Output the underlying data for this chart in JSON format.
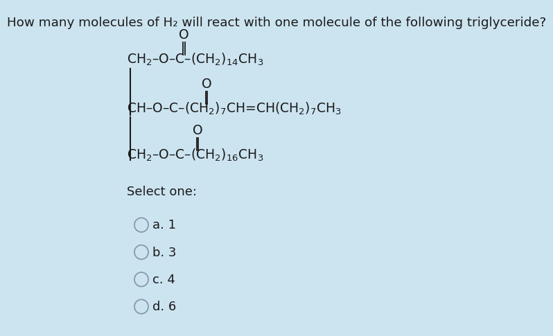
{
  "background_color": "#cce4f0",
  "title": "How many molecules of H₂ will react with one molecule of the following triglyceride?",
  "title_fontsize": 13.2,
  "font_color": "#1a1a1a",
  "formula_fontsize": 13.5,
  "option_fontsize": 13.0,
  "select_label": "Select one:",
  "options": [
    "a. 1",
    "b. 3",
    "c. 4",
    "d. 6"
  ]
}
